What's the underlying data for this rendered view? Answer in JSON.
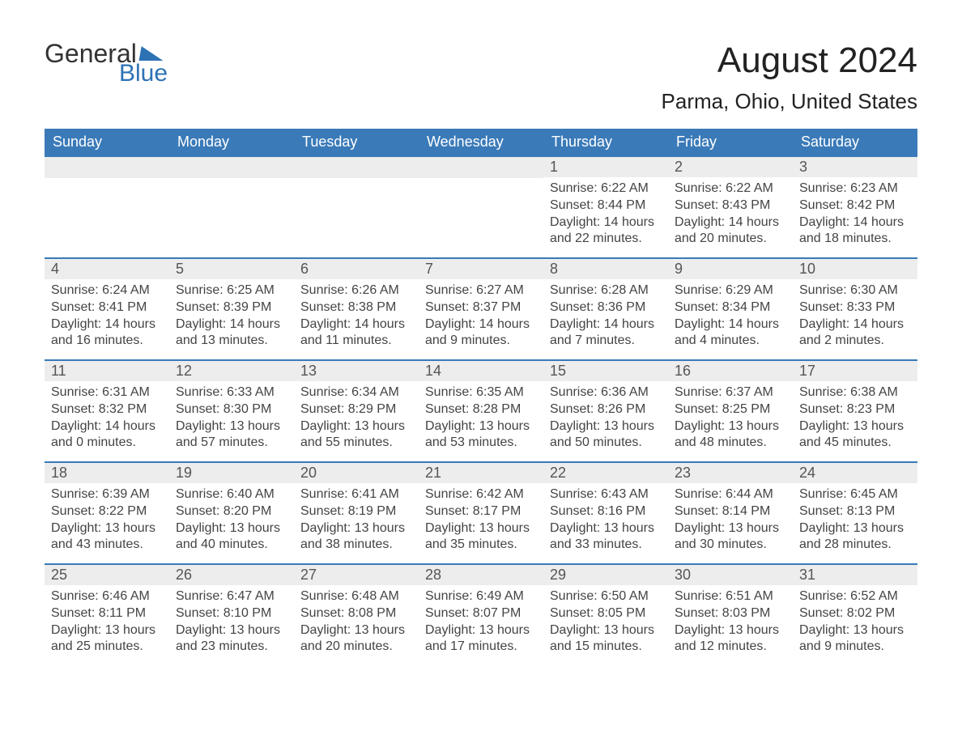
{
  "brand": {
    "word1": "General",
    "word2": "Blue",
    "logo_color": "#2d72b5"
  },
  "title": "August 2024",
  "location": "Parma, Ohio, United States",
  "colors": {
    "header_bg": "#3a7ab8",
    "header_text": "#ffffff",
    "daynum_bg": "#ededed",
    "daynum_text": "#555555",
    "border": "#3a7ab8",
    "body_text": "#444444",
    "page_bg": "#ffffff"
  },
  "typography": {
    "title_fontsize": 44,
    "location_fontsize": 26,
    "header_fontsize": 18,
    "body_fontsize": 16
  },
  "layout": {
    "columns": 7,
    "rows": 5,
    "aspect": "1188x918"
  },
  "weekdays": [
    "Sunday",
    "Monday",
    "Tuesday",
    "Wednesday",
    "Thursday",
    "Friday",
    "Saturday"
  ],
  "blank_cells_before": 4,
  "days": [
    {
      "n": "1",
      "sunrise": "6:22 AM",
      "sunset": "8:44 PM",
      "daylight": "14 hours and 22 minutes."
    },
    {
      "n": "2",
      "sunrise": "6:22 AM",
      "sunset": "8:43 PM",
      "daylight": "14 hours and 20 minutes."
    },
    {
      "n": "3",
      "sunrise": "6:23 AM",
      "sunset": "8:42 PM",
      "daylight": "14 hours and 18 minutes."
    },
    {
      "n": "4",
      "sunrise": "6:24 AM",
      "sunset": "8:41 PM",
      "daylight": "14 hours and 16 minutes."
    },
    {
      "n": "5",
      "sunrise": "6:25 AM",
      "sunset": "8:39 PM",
      "daylight": "14 hours and 13 minutes."
    },
    {
      "n": "6",
      "sunrise": "6:26 AM",
      "sunset": "8:38 PM",
      "daylight": "14 hours and 11 minutes."
    },
    {
      "n": "7",
      "sunrise": "6:27 AM",
      "sunset": "8:37 PM",
      "daylight": "14 hours and 9 minutes."
    },
    {
      "n": "8",
      "sunrise": "6:28 AM",
      "sunset": "8:36 PM",
      "daylight": "14 hours and 7 minutes."
    },
    {
      "n": "9",
      "sunrise": "6:29 AM",
      "sunset": "8:34 PM",
      "daylight": "14 hours and 4 minutes."
    },
    {
      "n": "10",
      "sunrise": "6:30 AM",
      "sunset": "8:33 PM",
      "daylight": "14 hours and 2 minutes."
    },
    {
      "n": "11",
      "sunrise": "6:31 AM",
      "sunset": "8:32 PM",
      "daylight": "14 hours and 0 minutes."
    },
    {
      "n": "12",
      "sunrise": "6:33 AM",
      "sunset": "8:30 PM",
      "daylight": "13 hours and 57 minutes."
    },
    {
      "n": "13",
      "sunrise": "6:34 AM",
      "sunset": "8:29 PM",
      "daylight": "13 hours and 55 minutes."
    },
    {
      "n": "14",
      "sunrise": "6:35 AM",
      "sunset": "8:28 PM",
      "daylight": "13 hours and 53 minutes."
    },
    {
      "n": "15",
      "sunrise": "6:36 AM",
      "sunset": "8:26 PM",
      "daylight": "13 hours and 50 minutes."
    },
    {
      "n": "16",
      "sunrise": "6:37 AM",
      "sunset": "8:25 PM",
      "daylight": "13 hours and 48 minutes."
    },
    {
      "n": "17",
      "sunrise": "6:38 AM",
      "sunset": "8:23 PM",
      "daylight": "13 hours and 45 minutes."
    },
    {
      "n": "18",
      "sunrise": "6:39 AM",
      "sunset": "8:22 PM",
      "daylight": "13 hours and 43 minutes."
    },
    {
      "n": "19",
      "sunrise": "6:40 AM",
      "sunset": "8:20 PM",
      "daylight": "13 hours and 40 minutes."
    },
    {
      "n": "20",
      "sunrise": "6:41 AM",
      "sunset": "8:19 PM",
      "daylight": "13 hours and 38 minutes."
    },
    {
      "n": "21",
      "sunrise": "6:42 AM",
      "sunset": "8:17 PM",
      "daylight": "13 hours and 35 minutes."
    },
    {
      "n": "22",
      "sunrise": "6:43 AM",
      "sunset": "8:16 PM",
      "daylight": "13 hours and 33 minutes."
    },
    {
      "n": "23",
      "sunrise": "6:44 AM",
      "sunset": "8:14 PM",
      "daylight": "13 hours and 30 minutes."
    },
    {
      "n": "24",
      "sunrise": "6:45 AM",
      "sunset": "8:13 PM",
      "daylight": "13 hours and 28 minutes."
    },
    {
      "n": "25",
      "sunrise": "6:46 AM",
      "sunset": "8:11 PM",
      "daylight": "13 hours and 25 minutes."
    },
    {
      "n": "26",
      "sunrise": "6:47 AM",
      "sunset": "8:10 PM",
      "daylight": "13 hours and 23 minutes."
    },
    {
      "n": "27",
      "sunrise": "6:48 AM",
      "sunset": "8:08 PM",
      "daylight": "13 hours and 20 minutes."
    },
    {
      "n": "28",
      "sunrise": "6:49 AM",
      "sunset": "8:07 PM",
      "daylight": "13 hours and 17 minutes."
    },
    {
      "n": "29",
      "sunrise": "6:50 AM",
      "sunset": "8:05 PM",
      "daylight": "13 hours and 15 minutes."
    },
    {
      "n": "30",
      "sunrise": "6:51 AM",
      "sunset": "8:03 PM",
      "daylight": "13 hours and 12 minutes."
    },
    {
      "n": "31",
      "sunrise": "6:52 AM",
      "sunset": "8:02 PM",
      "daylight": "13 hours and 9 minutes."
    }
  ],
  "labels": {
    "sunrise": "Sunrise: ",
    "sunset": "Sunset: ",
    "daylight": "Daylight: "
  }
}
